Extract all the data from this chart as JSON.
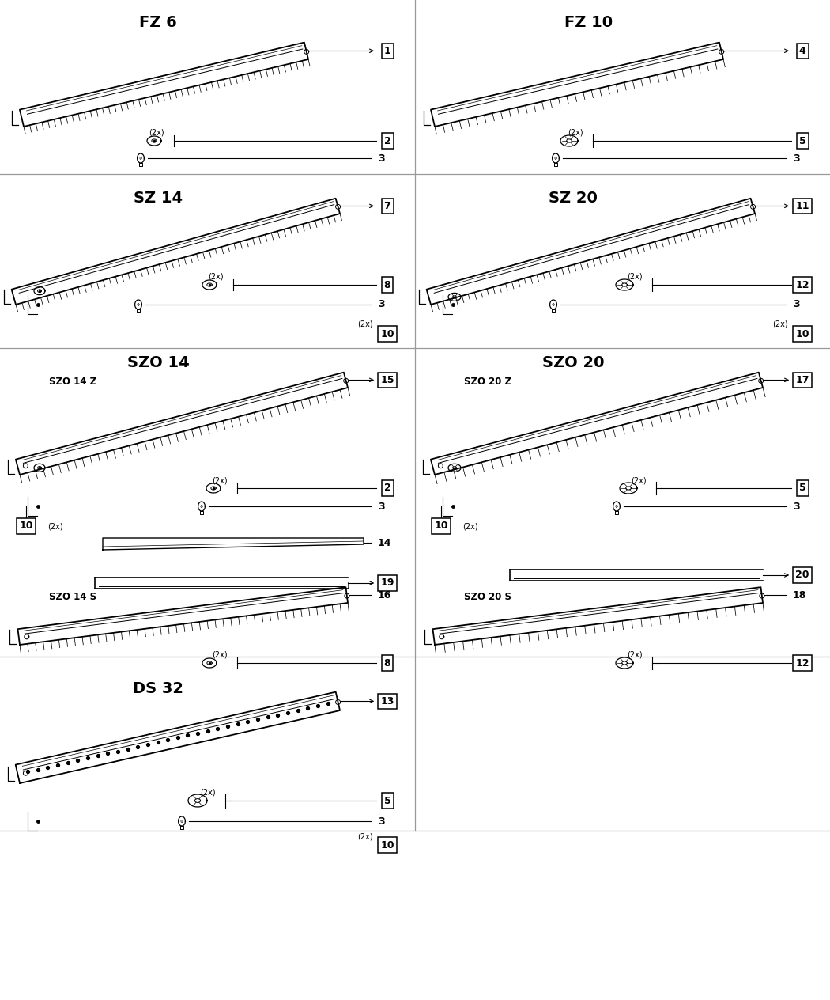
{
  "bg": "#ffffff",
  "lc": "#000000",
  "sections": [
    {
      "name": "FZ 6",
      "col": 0,
      "row": 0,
      "parts": [
        1,
        2,
        3
      ]
    },
    {
      "name": "FZ 10",
      "col": 1,
      "row": 0,
      "parts": [
        4,
        5,
        3
      ]
    },
    {
      "name": "SZ 14",
      "col": 0,
      "row": 1,
      "parts": [
        7,
        8,
        3,
        10
      ]
    },
    {
      "name": "SZ 20",
      "col": 1,
      "row": 1,
      "parts": [
        11,
        12,
        3,
        10
      ]
    },
    {
      "name": "SZO 14",
      "col": 0,
      "row": 2,
      "parts": [
        15,
        2,
        3,
        10,
        14,
        19,
        16,
        8
      ]
    },
    {
      "name": "SZO 20",
      "col": 1,
      "row": 2,
      "parts": [
        17,
        5,
        3,
        10,
        20,
        18,
        12
      ]
    },
    {
      "name": "DS 32",
      "col": 0,
      "row": 3,
      "parts": [
        13,
        5,
        3,
        10
      ]
    }
  ],
  "grid_lw": 1.0,
  "grid_color": "#888888",
  "title_fs": 13,
  "num_fs": 9,
  "label_fs": 8
}
